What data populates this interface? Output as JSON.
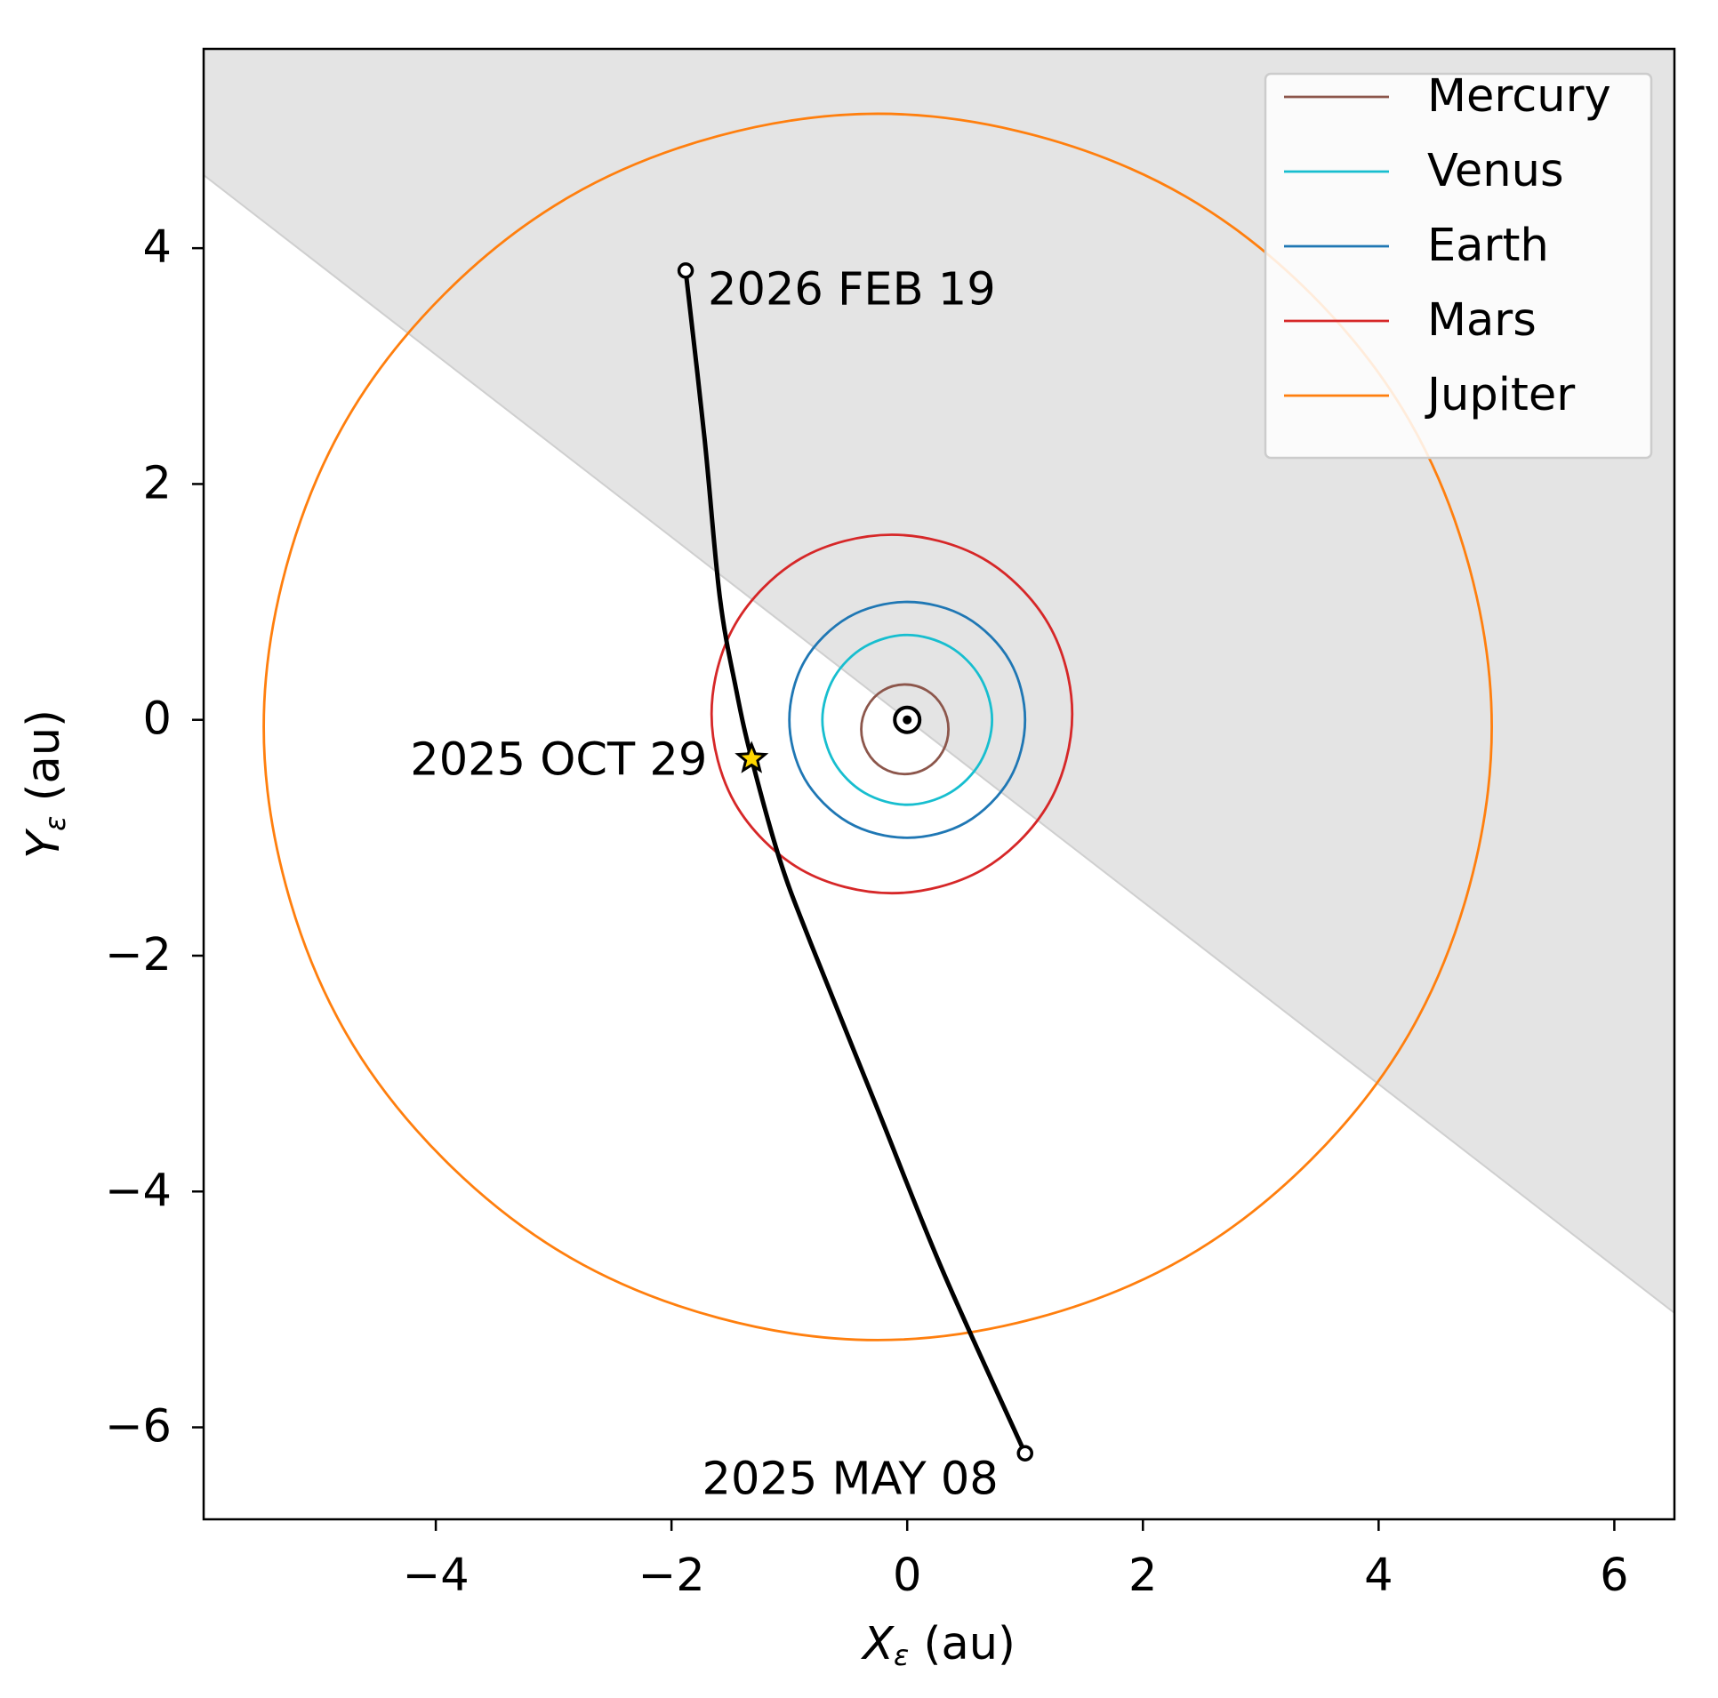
{
  "chart_data": {
    "type": "orbit",
    "xlabel": {
      "symbol": "X",
      "subscript": "ε",
      "unit": "(au)"
    },
    "ylabel": {
      "symbol": "Y",
      "subscript": "ε",
      "unit": "(au)"
    },
    "xlim": [
      -5.97,
      6.51
    ],
    "ylim": [
      -6.78,
      5.69
    ],
    "xticks": [
      {
        "value": -4,
        "label": "−4"
      },
      {
        "value": -2,
        "label": "−2"
      },
      0,
      2,
      4,
      6
    ],
    "yticks": [
      {
        "value": -6,
        "label": "−6"
      },
      {
        "value": -4,
        "label": "−4"
      },
      {
        "value": -2,
        "label": "−2"
      },
      0,
      2,
      4
    ],
    "legend": "upper right",
    "shaded_boundary": {
      "x": [
        -5.97,
        6.51
      ],
      "y": [
        4.62,
        -5.03
      ],
      "color": "#e4e4e4"
    },
    "series": [
      {
        "name": "Mercury",
        "color": "#8c564b",
        "x": [
          0.35,
          0.3,
          0.165,
          -0.02,
          -0.205,
          -0.34,
          -0.39,
          -0.34,
          -0.205,
          -0.02,
          0.165,
          0.3
        ],
        "y": [
          -0.08,
          0.11,
          0.25,
          0.3,
          0.25,
          0.11,
          -0.08,
          -0.27,
          -0.41,
          -0.46,
          -0.41,
          -0.27
        ]
      },
      {
        "name": "Venus",
        "color": "#17becf",
        "x": [
          0.72,
          0.62,
          0.36,
          0,
          -0.36,
          -0.62,
          -0.72,
          -0.62,
          -0.36,
          0,
          0.36,
          0.62
        ],
        "y": [
          0,
          0.36,
          0.62,
          0.72,
          0.62,
          0.36,
          0,
          -0.36,
          -0.62,
          -0.72,
          -0.62,
          -0.36
        ]
      },
      {
        "name": "Earth",
        "color": "#1f77b4",
        "x": [
          1.0,
          0.87,
          0.5,
          0,
          -0.5,
          -0.87,
          -1.0,
          -0.87,
          -0.5,
          0,
          0.5,
          0.87
        ],
        "y": [
          0,
          0.5,
          0.87,
          1.0,
          0.87,
          0.5,
          0,
          -0.5,
          -0.87,
          -1.0,
          -0.87,
          -0.5
        ]
      },
      {
        "name": "Mars",
        "color": "#d62728",
        "x": [
          1.4,
          1.2,
          0.64,
          -0.13,
          -0.9,
          -1.46,
          -1.66,
          -1.46,
          -0.9,
          -0.13,
          0.64,
          1.2
        ],
        "y": [
          0.05,
          0.81,
          1.37,
          1.57,
          1.37,
          0.81,
          0.05,
          -0.71,
          -1.27,
          -1.47,
          -1.27,
          -0.71
        ]
      },
      {
        "name": "Jupiter",
        "color": "#ff7f0e",
        "x": [
          4.96,
          4.26,
          2.36,
          -0.25,
          -2.86,
          -4.76,
          -5.46,
          -4.76,
          -2.86,
          -0.25,
          2.36,
          4.26
        ],
        "y": [
          -0.06,
          2.54,
          4.44,
          5.14,
          4.44,
          2.54,
          -0.06,
          -2.66,
          -4.56,
          -5.26,
          -4.56,
          -2.66
        ]
      }
    ],
    "trajectory": {
      "color": "#000000",
      "x": [
        1.0,
        0.3,
        -0.26,
        -0.82,
        -1.08,
        -1.32,
        -1.45,
        -1.59,
        -1.72,
        -1.88
      ],
      "y": [
        -6.22,
        -4.67,
        -3.28,
        -1.89,
        -1.19,
        -0.33,
        0.25,
        1.04,
        2.39,
        3.81
      ]
    },
    "markers": [
      {
        "label": "2025 MAY 08",
        "x": 1.0,
        "y": -6.22,
        "symbol": "circle",
        "label_position": "below-left"
      },
      {
        "label": "2025 OCT 29",
        "x": -1.32,
        "y": -0.33,
        "symbol": "star",
        "label_position": "left"
      },
      {
        "label": "2026 FEB 19",
        "x": -1.88,
        "y": 3.81,
        "symbol": "circle",
        "label_position": "right"
      },
      {
        "x": 0,
        "y": 0,
        "symbol": "sun"
      }
    ]
  }
}
